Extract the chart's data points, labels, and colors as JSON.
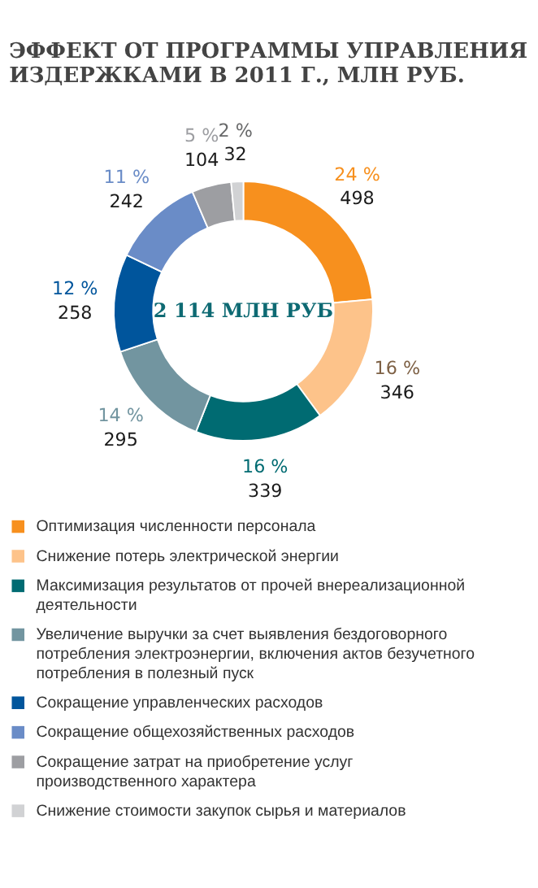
{
  "chart_data": {
    "type": "donut",
    "title": "ЭФФЕКТ ОТ ПРОГРАММЫ УПРАВЛЕНИЯ ИЗДЕРЖКАМИ В 2011 Г., МЛН РУБ.",
    "categories": [
      "Оптимизация численности персонала",
      "Снижение потерь электрической энергии",
      "Максимизация результатов от прочей внереализационной деятельности",
      "Увеличение выручки за счет выявления бездоговорного потребления электроэнергии, включения актов безучетного потребления в полезный пуск",
      "Сокращение управленческих расходов",
      "Сокращение общехозяйственных расходов",
      "Сокращение затрат на приобретение услуг производственного характера",
      "Снижение стоимости закупок сырья и материалов"
    ],
    "values": [
      498,
      346,
      339,
      295,
      258,
      242,
      104,
      32
    ],
    "colors": [
      "#f7901e",
      "#fdc38a",
      "#006b72",
      "#7295a0",
      "#00559c",
      "#6a8cc7",
      "#9d9ea2",
      "#d1d2d4"
    ],
    "data_labels": true,
    "annotations": [
      "2 114 МЛН РУБ",
      {
        "text": "24 %",
        "x": "Оптимизация численности персонала"
      },
      {
        "text": "16 %",
        "x": "Снижение потерь электрической энергии"
      },
      {
        "text": "16 %",
        "x": "Максимизация результатов от прочей внереализационной деятельности"
      },
      {
        "text": "14 %",
        "x": "Увеличение выручки за счет выявления бездоговорного потребления электроэнергии, включения актов безучетного потребления в полезный пуск"
      },
      {
        "text": "12 %",
        "x": "Сокращение управленческих расходов"
      },
      {
        "text": "11 %",
        "x": "Сокращение общехозяйственных расходов"
      },
      {
        "text": "5 %",
        "x": "Сокращение затрат на приобретение услуг производственного характера"
      },
      {
        "text": "2 %",
        "x": "Снижение стоимости закупок сырья и материалов"
      }
    ],
    "legend": "bottom"
  }
}
